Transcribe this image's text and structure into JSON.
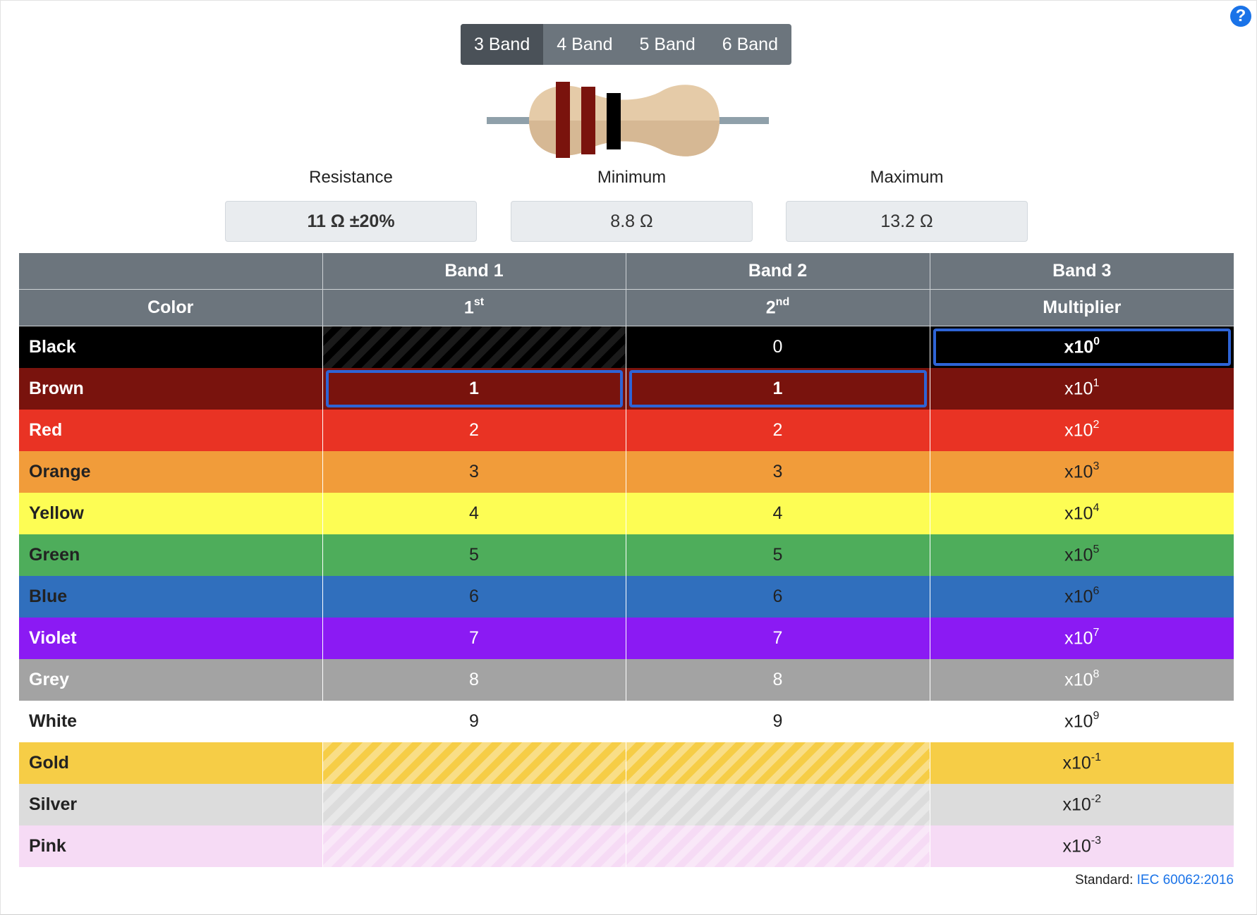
{
  "tabs": [
    {
      "label": "3 Band",
      "active": true
    },
    {
      "label": "4 Band",
      "active": false
    },
    {
      "label": "5 Band",
      "active": false
    },
    {
      "label": "6 Band",
      "active": false
    }
  ],
  "help_icon": "question-circle-icon",
  "summary": {
    "resistance_label": "Resistance",
    "resistance_value": "11 Ω ±20%",
    "minimum_label": "Minimum",
    "minimum_value": "8.8 Ω",
    "maximum_label": "Maximum",
    "maximum_value": "13.2 Ω"
  },
  "resistor_bands": [
    "#7a130d",
    "#7a130d",
    "#000000"
  ],
  "table": {
    "header_row1": [
      "",
      "Band 1",
      "Band 2",
      "Band 3"
    ],
    "header_row2": {
      "color": "Color",
      "band1_num": "1",
      "band1_sup": "st",
      "band2_num": "2",
      "band2_sup": "nd",
      "band3": "Multiplier"
    },
    "rows": [
      {
        "name": "Black",
        "bg": "#000000",
        "fg": "#ffffff",
        "b1": "",
        "b2": "0",
        "mult": "0",
        "b1_sel": false,
        "b2_sel": false,
        "m_sel": true
      },
      {
        "name": "Brown",
        "bg": "#79130d",
        "fg": "#ffffff",
        "b1": "1",
        "b2": "1",
        "mult": "1",
        "b1_sel": true,
        "b2_sel": true,
        "m_sel": false
      },
      {
        "name": "Red",
        "bg": "#e93324",
        "fg": "#ffffff",
        "b1": "2",
        "b2": "2",
        "mult": "2",
        "b1_sel": false,
        "b2_sel": false,
        "m_sel": false
      },
      {
        "name": "Orange",
        "bg": "#f19c3a",
        "fg": "#222222",
        "b1": "3",
        "b2": "3",
        "mult": "3",
        "b1_sel": false,
        "b2_sel": false,
        "m_sel": false
      },
      {
        "name": "Yellow",
        "bg": "#fdfd54",
        "fg": "#222222",
        "b1": "4",
        "b2": "4",
        "mult": "4",
        "b1_sel": false,
        "b2_sel": false,
        "m_sel": false
      },
      {
        "name": "Green",
        "bg": "#4ead5b",
        "fg": "#222222",
        "b1": "5",
        "b2": "5",
        "mult": "5",
        "b1_sel": false,
        "b2_sel": false,
        "m_sel": false
      },
      {
        "name": "Blue",
        "bg": "#306fbd",
        "fg": "#222222",
        "b1": "6",
        "b2": "6",
        "mult": "6",
        "b1_sel": false,
        "b2_sel": false,
        "m_sel": false
      },
      {
        "name": "Violet",
        "bg": "#8b1af3",
        "fg": "#ffffff",
        "b1": "7",
        "b2": "7",
        "mult": "7",
        "b1_sel": false,
        "b2_sel": false,
        "m_sel": false
      },
      {
        "name": "Grey",
        "bg": "#a3a3a3",
        "fg": "#ffffff",
        "b1": "8",
        "b2": "8",
        "mult": "8",
        "b1_sel": false,
        "b2_sel": false,
        "m_sel": false
      },
      {
        "name": "White",
        "bg": "#ffffff",
        "fg": "#222222",
        "b1": "9",
        "b2": "9",
        "mult": "9",
        "b1_sel": false,
        "b2_sel": false,
        "m_sel": false
      },
      {
        "name": "Gold",
        "bg": "#f6cd46",
        "fg": "#222222",
        "b1": "",
        "b2": "",
        "mult": "-1",
        "b1_sel": false,
        "b2_sel": false,
        "m_sel": false
      },
      {
        "name": "Silver",
        "bg": "#dcdcdc",
        "fg": "#222222",
        "b1": "",
        "b2": "",
        "mult": "-2",
        "b1_sel": false,
        "b2_sel": false,
        "m_sel": false
      },
      {
        "name": "Pink",
        "bg": "#f6dbf5",
        "fg": "#222222",
        "b1": "",
        "b2": "",
        "mult": "-3",
        "b1_sel": false,
        "b2_sel": false,
        "m_sel": false
      }
    ],
    "mult_prefix": "x10"
  },
  "footer": {
    "standard_label": "Standard:",
    "standard_link": "IEC 60062:2016"
  }
}
